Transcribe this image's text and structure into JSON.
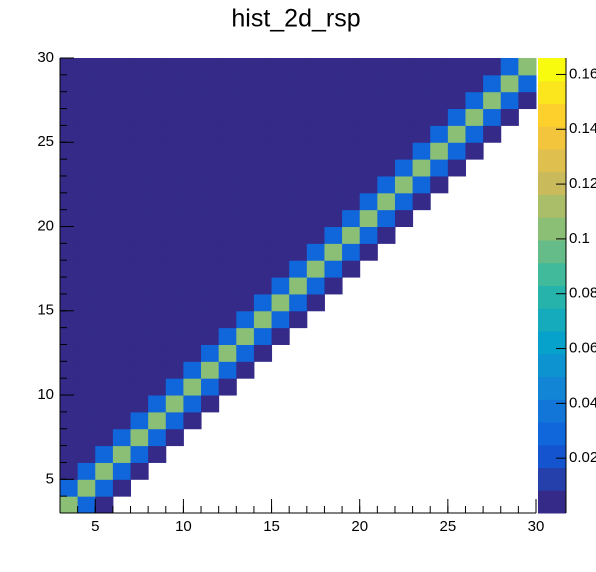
{
  "chart_data": {
    "type": "heatmap",
    "title": "hist_2d_rsp",
    "x": [
      3,
      4,
      5,
      6,
      7,
      8,
      9,
      10,
      11,
      12,
      13,
      14,
      15,
      16,
      17,
      18,
      19,
      20,
      21,
      22,
      23,
      24,
      25,
      26,
      27,
      28,
      29,
      30
    ],
    "y": [
      3,
      4,
      5,
      6,
      7,
      8,
      9,
      10,
      11,
      12,
      13,
      14,
      15,
      16,
      17,
      18,
      19,
      20,
      21,
      22,
      23,
      24,
      25,
      26,
      27,
      28,
      29,
      30
    ],
    "z": [
      [
        0.1,
        0.03,
        0.003,
        null,
        null,
        null,
        null,
        null,
        null,
        null,
        null,
        null,
        null,
        null,
        null,
        null,
        null,
        null,
        null,
        null,
        null,
        null,
        null,
        null,
        null,
        null,
        null
      ],
      [
        0.03,
        0.1,
        0.03,
        0.003,
        null,
        null,
        null,
        null,
        null,
        null,
        null,
        null,
        null,
        null,
        null,
        null,
        null,
        null,
        null,
        null,
        null,
        null,
        null,
        null,
        null,
        null,
        null
      ],
      [
        0.003,
        0.03,
        0.1,
        0.03,
        0.003,
        null,
        null,
        null,
        null,
        null,
        null,
        null,
        null,
        null,
        null,
        null,
        null,
        null,
        null,
        null,
        null,
        null,
        null,
        null,
        null,
        null,
        null
      ],
      [
        0.003,
        0.003,
        0.03,
        0.1,
        0.03,
        0.003,
        null,
        null,
        null,
        null,
        null,
        null,
        null,
        null,
        null,
        null,
        null,
        null,
        null,
        null,
        null,
        null,
        null,
        null,
        null,
        null,
        null
      ],
      [
        0.003,
        0.003,
        0.003,
        0.03,
        0.1,
        0.03,
        0.003,
        null,
        null,
        null,
        null,
        null,
        null,
        null,
        null,
        null,
        null,
        null,
        null,
        null,
        null,
        null,
        null,
        null,
        null,
        null,
        null
      ],
      [
        0.003,
        0.003,
        0.003,
        0.003,
        0.03,
        0.1,
        0.03,
        0.003,
        null,
        null,
        null,
        null,
        null,
        null,
        null,
        null,
        null,
        null,
        null,
        null,
        null,
        null,
        null,
        null,
        null,
        null,
        null
      ],
      [
        0.003,
        0.003,
        0.003,
        0.003,
        0.003,
        0.03,
        0.1,
        0.03,
        0.003,
        null,
        null,
        null,
        null,
        null,
        null,
        null,
        null,
        null,
        null,
        null,
        null,
        null,
        null,
        null,
        null,
        null,
        null
      ],
      [
        0.003,
        0.003,
        0.003,
        0.003,
        0.003,
        0.003,
        0.03,
        0.1,
        0.03,
        0.003,
        null,
        null,
        null,
        null,
        null,
        null,
        null,
        null,
        null,
        null,
        null,
        null,
        null,
        null,
        null,
        null,
        null
      ],
      [
        0.003,
        0.003,
        0.003,
        0.003,
        0.003,
        0.003,
        0.003,
        0.03,
        0.1,
        0.03,
        0.003,
        null,
        null,
        null,
        null,
        null,
        null,
        null,
        null,
        null,
        null,
        null,
        null,
        null,
        null,
        null,
        null
      ],
      [
        0.003,
        0.003,
        0.003,
        0.003,
        0.003,
        0.003,
        0.003,
        0.003,
        0.03,
        0.1,
        0.03,
        0.003,
        null,
        null,
        null,
        null,
        null,
        null,
        null,
        null,
        null,
        null,
        null,
        null,
        null,
        null,
        null
      ],
      [
        0.003,
        0.003,
        0.003,
        0.003,
        0.003,
        0.003,
        0.003,
        0.003,
        0.003,
        0.03,
        0.1,
        0.03,
        0.003,
        null,
        null,
        null,
        null,
        null,
        null,
        null,
        null,
        null,
        null,
        null,
        null,
        null,
        null
      ],
      [
        0.003,
        0.003,
        0.003,
        0.003,
        0.003,
        0.003,
        0.003,
        0.003,
        0.003,
        0.003,
        0.03,
        0.1,
        0.03,
        0.003,
        null,
        null,
        null,
        null,
        null,
        null,
        null,
        null,
        null,
        null,
        null,
        null,
        null
      ],
      [
        0.003,
        0.003,
        0.003,
        0.003,
        0.003,
        0.003,
        0.003,
        0.003,
        0.003,
        0.003,
        0.003,
        0.03,
        0.1,
        0.03,
        0.003,
        null,
        null,
        null,
        null,
        null,
        null,
        null,
        null,
        null,
        null,
        null,
        null
      ],
      [
        0.003,
        0.003,
        0.003,
        0.003,
        0.003,
        0.003,
        0.003,
        0.003,
        0.003,
        0.003,
        0.003,
        0.003,
        0.03,
        0.1,
        0.03,
        0.003,
        null,
        null,
        null,
        null,
        null,
        null,
        null,
        null,
        null,
        null,
        null
      ],
      [
        0.003,
        0.003,
        0.003,
        0.003,
        0.003,
        0.003,
        0.003,
        0.003,
        0.003,
        0.003,
        0.003,
        0.003,
        0.003,
        0.03,
        0.1,
        0.03,
        0.003,
        null,
        null,
        null,
        null,
        null,
        null,
        null,
        null,
        null,
        null
      ],
      [
        0.003,
        0.003,
        0.003,
        0.003,
        0.003,
        0.003,
        0.003,
        0.003,
        0.003,
        0.003,
        0.003,
        0.003,
        0.003,
        0.003,
        0.03,
        0.1,
        0.03,
        0.003,
        null,
        null,
        null,
        null,
        null,
        null,
        null,
        null,
        null
      ],
      [
        0.003,
        0.003,
        0.003,
        0.003,
        0.003,
        0.003,
        0.003,
        0.003,
        0.003,
        0.003,
        0.003,
        0.003,
        0.003,
        0.003,
        0.003,
        0.03,
        0.1,
        0.03,
        0.003,
        null,
        null,
        null,
        null,
        null,
        null,
        null,
        null
      ],
      [
        0.003,
        0.003,
        0.003,
        0.003,
        0.003,
        0.003,
        0.003,
        0.003,
        0.003,
        0.003,
        0.003,
        0.003,
        0.003,
        0.003,
        0.003,
        0.003,
        0.03,
        0.1,
        0.03,
        0.003,
        null,
        null,
        null,
        null,
        null,
        null,
        null
      ],
      [
        0.003,
        0.003,
        0.003,
        0.003,
        0.003,
        0.003,
        0.003,
        0.003,
        0.003,
        0.003,
        0.003,
        0.003,
        0.003,
        0.003,
        0.003,
        0.003,
        0.003,
        0.03,
        0.1,
        0.03,
        0.003,
        null,
        null,
        null,
        null,
        null,
        null
      ],
      [
        0.003,
        0.003,
        0.003,
        0.003,
        0.003,
        0.003,
        0.003,
        0.003,
        0.003,
        0.003,
        0.003,
        0.003,
        0.003,
        0.003,
        0.003,
        0.003,
        0.003,
        0.003,
        0.03,
        0.1,
        0.03,
        0.003,
        null,
        null,
        null,
        null,
        null
      ],
      [
        0.003,
        0.003,
        0.003,
        0.003,
        0.003,
        0.003,
        0.003,
        0.003,
        0.003,
        0.003,
        0.003,
        0.003,
        0.003,
        0.003,
        0.003,
        0.003,
        0.003,
        0.003,
        0.003,
        0.03,
        0.1,
        0.03,
        0.003,
        null,
        null,
        null,
        null
      ],
      [
        0.003,
        0.003,
        0.003,
        0.003,
        0.003,
        0.003,
        0.003,
        0.003,
        0.003,
        0.003,
        0.003,
        0.003,
        0.003,
        0.003,
        0.003,
        0.003,
        0.003,
        0.003,
        0.003,
        0.003,
        0.03,
        0.1,
        0.03,
        0.003,
        null,
        null,
        null
      ],
      [
        0.003,
        0.003,
        0.003,
        0.003,
        0.003,
        0.003,
        0.003,
        0.003,
        0.003,
        0.003,
        0.003,
        0.003,
        0.003,
        0.003,
        0.003,
        0.003,
        0.003,
        0.003,
        0.003,
        0.003,
        0.003,
        0.03,
        0.1,
        0.03,
        0.003,
        null,
        null
      ],
      [
        0.003,
        0.003,
        0.003,
        0.003,
        0.003,
        0.003,
        0.003,
        0.003,
        0.003,
        0.003,
        0.003,
        0.003,
        0.003,
        0.003,
        0.003,
        0.003,
        0.003,
        0.003,
        0.003,
        0.003,
        0.003,
        0.003,
        0.03,
        0.1,
        0.03,
        0.003,
        null
      ],
      [
        0.003,
        0.003,
        0.003,
        0.003,
        0.003,
        0.003,
        0.003,
        0.003,
        0.003,
        0.003,
        0.003,
        0.003,
        0.003,
        0.003,
        0.003,
        0.003,
        0.003,
        0.003,
        0.003,
        0.003,
        0.003,
        0.003,
        0.003,
        0.03,
        0.1,
        0.03,
        0.003
      ],
      [
        0.003,
        0.003,
        0.003,
        0.003,
        0.003,
        0.003,
        0.003,
        0.003,
        0.003,
        0.003,
        0.003,
        0.003,
        0.003,
        0.003,
        0.003,
        0.003,
        0.003,
        0.003,
        0.003,
        0.003,
        0.003,
        0.003,
        0.003,
        0.003,
        0.03,
        0.1,
        0.03
      ],
      [
        0.003,
        0.003,
        0.003,
        0.003,
        0.003,
        0.003,
        0.003,
        0.003,
        0.003,
        0.003,
        0.003,
        0.003,
        0.003,
        0.003,
        0.003,
        0.003,
        0.003,
        0.003,
        0.003,
        0.003,
        0.003,
        0.003,
        0.003,
        0.003,
        0.003,
        0.03,
        0.1
      ]
    ],
    "xlim": [
      3,
      30
    ],
    "ylim": [
      3,
      30
    ],
    "zlim": [
      0,
      0.166
    ],
    "xticks": [
      5,
      10,
      15,
      20,
      25,
      30
    ],
    "yticks": [
      5,
      10,
      15,
      20,
      25,
      30
    ],
    "zticks": [
      0.02,
      0.04,
      0.06,
      0.08,
      0.1,
      0.12,
      0.14,
      0.16
    ],
    "palette": [
      "#352a87",
      "#0f5cdd",
      "#1481d6",
      "#06a4ca",
      "#2eb7a4",
      "#87bf77",
      "#d1bb59",
      "#fec832",
      "#f9fb0e"
    ],
    "contours": 20
  }
}
